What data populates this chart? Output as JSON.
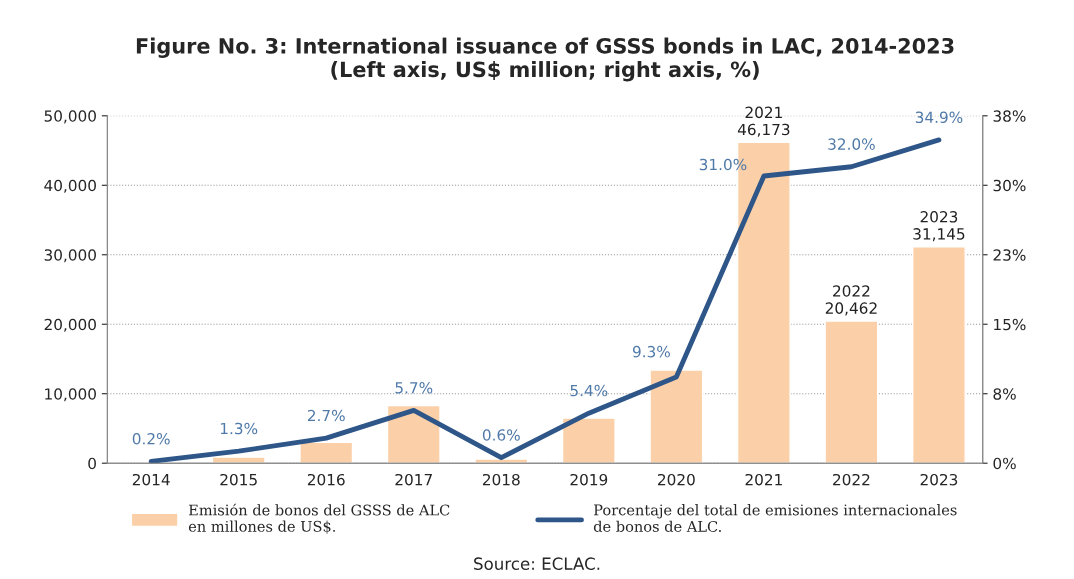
{
  "chart_data": {
    "type": "bar",
    "title": "Figure No. 3: International issuance of GSSS bonds in LAC, 2014-2023\n(Left axis, US$ million; right axis, %)",
    "categories": [
      "2014",
      "2015",
      "2016",
      "2017",
      "2018",
      "2019",
      "2020",
      "2021",
      "2022",
      "2023"
    ],
    "series": [
      {
        "name": "Emisión de bonos del GSSS de ALC\nen millones de US$.",
        "color": "#fbd0a8",
        "values": [
          null,
          900,
          3000,
          8300,
          600,
          6500,
          13400,
          46173,
          20462,
          31145
        ],
        "value_labels": [
          null,
          null,
          null,
          null,
          null,
          null,
          null,
          "2021\n46,173",
          "2022\n20,462",
          "2023\n31,145"
        ]
      },
      {
        "name": "Porcentaje del total de emisiones internacionales\nde bonos de ALC.",
        "type": "line",
        "axis": "y2",
        "color": "#2f5688",
        "values": [
          0.2,
          1.3,
          2.7,
          5.7,
          0.6,
          5.4,
          9.3,
          31.0,
          32.0,
          34.9
        ],
        "value_labels": [
          "0.2%",
          "1.3%",
          "2.7%",
          "5.7%",
          "0.6%",
          "5.4%",
          "9.3%",
          "31.0%",
          "32.0%",
          "34.9%"
        ]
      }
    ],
    "ylim": [
      0,
      50000
    ],
    "yticks": [
      {
        "value": 0,
        "label": "0"
      },
      {
        "value": 10000,
        "label": "10,000"
      },
      {
        "value": 20000,
        "label": "20,000"
      },
      {
        "value": 30000,
        "label": "30,000"
      },
      {
        "value": 40000,
        "label": "40,000"
      },
      {
        "value": 50000,
        "label": "50,000"
      }
    ],
    "y2lim": [
      0,
      37.5
    ],
    "y2ticks": [
      {
        "value": 0,
        "label": "0%"
      },
      {
        "value": 7.5,
        "label": "8%"
      },
      {
        "value": 15,
        "label": "15%"
      },
      {
        "value": 22.5,
        "label": "23%"
      },
      {
        "value": 30,
        "label": "30%"
      },
      {
        "value": 37.5,
        "label": "38%"
      }
    ],
    "grid": "y",
    "legend": "bottom",
    "marker": "none",
    "line_style": "solid",
    "annotations": [
      "Source: ECLAC."
    ]
  }
}
